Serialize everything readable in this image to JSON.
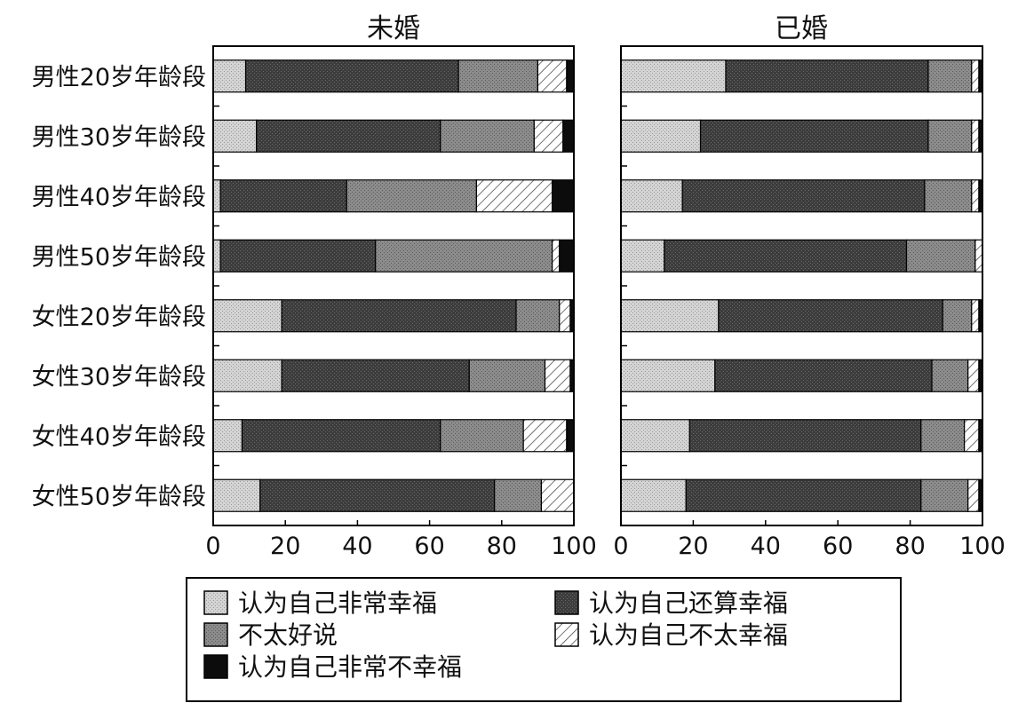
{
  "chart_data": {
    "type": "bar",
    "orientation": "horizontal",
    "stacked": true,
    "xlim": [
      0,
      100
    ],
    "xticks": [
      "0",
      "20",
      "40",
      "60",
      "80",
      "100"
    ],
    "categories": [
      "男性20岁年龄段",
      "男性30岁年龄段",
      "男性40岁年龄段",
      "男性50岁年龄段",
      "女性20岁年龄段",
      "女性30岁年龄段",
      "女性40岁年龄段",
      "女性50岁年龄段"
    ],
    "legend": {
      "placement": "bottom",
      "entries": [
        {
          "label": "认为自己非常幸福",
          "pattern": "very-happy"
        },
        {
          "label": "认为自己还算幸福",
          "pattern": "fairly-happy"
        },
        {
          "label": "不太好说",
          "pattern": "hard-to-say"
        },
        {
          "label": "认为自己不太幸福",
          "pattern": "not-very-happy"
        },
        {
          "label": "认为自己非常不幸福",
          "pattern": "very-unhappy"
        }
      ]
    },
    "panels": [
      {
        "title": "未婚",
        "series": [
          {
            "name": "认为自己非常幸福",
            "values": [
              9,
              12,
              2,
              2,
              19,
              19,
              8,
              13
            ]
          },
          {
            "name": "认为自己还算幸福",
            "values": [
              59,
              51,
              35,
              43,
              65,
              52,
              55,
              65
            ]
          },
          {
            "name": "不太好说",
            "values": [
              22,
              26,
              36,
              49,
              12,
              21,
              23,
              13
            ]
          },
          {
            "name": "认为自己不太幸福",
            "values": [
              8,
              8,
              21,
              2,
              3,
              7,
              12,
              9
            ]
          },
          {
            "name": "认为自己非常不幸福",
            "values": [
              2,
              3,
              6,
              4,
              1,
              1,
              2,
              0
            ]
          }
        ]
      },
      {
        "title": "已婚",
        "series": [
          {
            "name": "认为自己非常幸福",
            "values": [
              29,
              22,
              17,
              12,
              27,
              26,
              19,
              18
            ]
          },
          {
            "name": "认为自己还算幸福",
            "values": [
              56,
              63,
              67,
              67,
              62,
              60,
              64,
              65
            ]
          },
          {
            "name": "不太好说",
            "values": [
              12,
              12,
              13,
              19,
              8,
              10,
              12,
              13
            ]
          },
          {
            "name": "认为自己不太幸福",
            "values": [
              2,
              2,
              2,
              2,
              2,
              3,
              4,
              3
            ]
          },
          {
            "name": "认为自己非常不幸福",
            "values": [
              1,
              1,
              1,
              0,
              1,
              1,
              1,
              1
            ]
          }
        ]
      }
    ]
  }
}
